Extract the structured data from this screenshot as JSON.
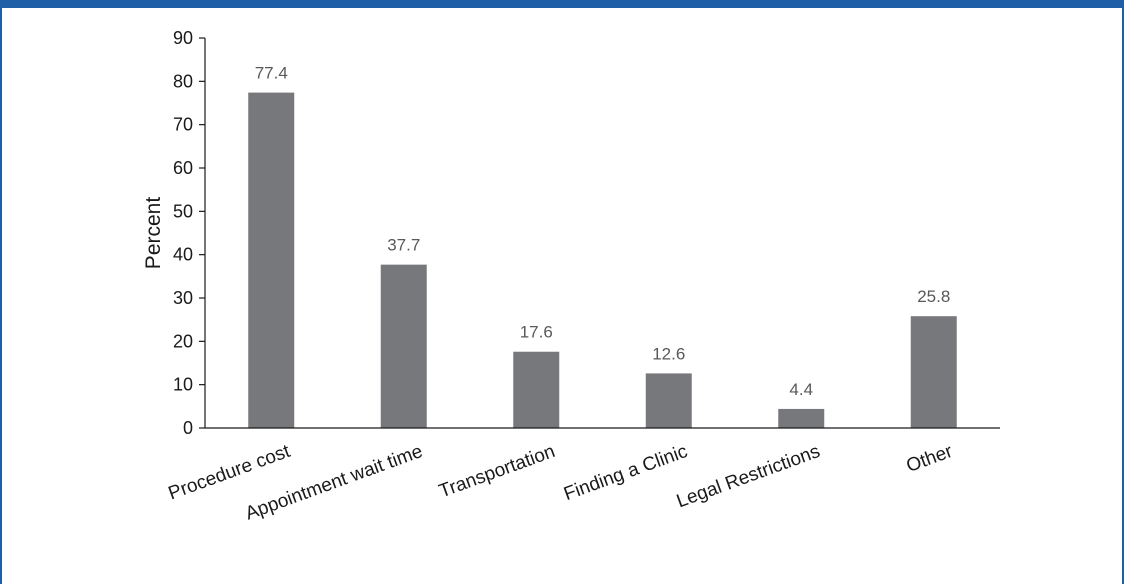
{
  "colors": {
    "frame": "#1f5fa8",
    "bar": "#77787b",
    "axis": "#1a1a1a",
    "data_label": "#595959"
  },
  "chart_data": {
    "type": "bar",
    "title": "",
    "xlabel": "",
    "ylabel": "Percent",
    "categories": [
      "Procedure cost",
      "Appointment wait time",
      "Transportation",
      "Finding a Clinic",
      "Legal Restrictions",
      "Other"
    ],
    "values": [
      77.4,
      37.7,
      17.6,
      12.6,
      4.4,
      25.8
    ],
    "data_labels": [
      "77.4",
      "37.7",
      "17.6",
      "12.6",
      "4.4",
      "25.8"
    ],
    "ylim": [
      0,
      90
    ],
    "yticks": [
      0,
      10,
      20,
      30,
      40,
      50,
      60,
      70,
      80,
      90
    ],
    "grid": false,
    "legend": "none"
  }
}
